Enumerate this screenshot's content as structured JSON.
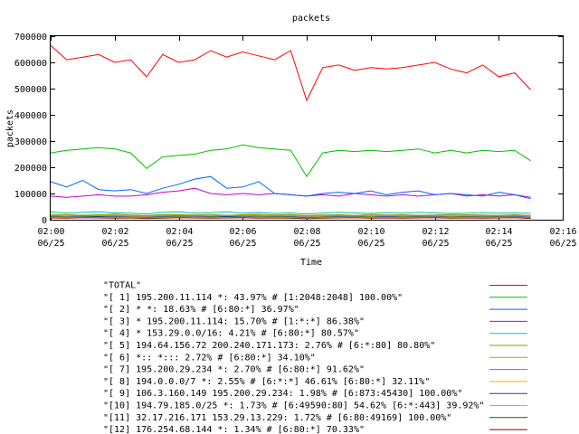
{
  "chart_data": {
    "type": "line",
    "title": "packets",
    "xlabel": "Time",
    "ylabel": "packets",
    "ylim": [
      0,
      700000
    ],
    "yticks": [
      0,
      100000,
      200000,
      300000,
      400000,
      500000,
      600000,
      700000
    ],
    "yticklabels": [
      "0",
      "100000",
      "200000",
      "300000",
      "400000",
      "500000",
      "600000",
      "700000"
    ],
    "xlim": [
      "02:00",
      "02:16"
    ],
    "xticks": [
      {
        "time": "02:00",
        "date": "06/25"
      },
      {
        "time": "02:02",
        "date": "06/25"
      },
      {
        "time": "02:04",
        "date": "06/25"
      },
      {
        "time": "02:06",
        "date": "06/25"
      },
      {
        "time": "02:08",
        "date": "06/25"
      },
      {
        "time": "02:10",
        "date": "06/25"
      },
      {
        "time": "02:12",
        "date": "06/25"
      },
      {
        "time": "02:14",
        "date": "06/25"
      },
      {
        "time": "02:16",
        "date": "06/25"
      }
    ],
    "grid": false,
    "legend_position": "bottom",
    "x": [
      "02:00",
      "02:00:30",
      "02:01",
      "02:01:30",
      "02:02",
      "02:02:30",
      "02:03",
      "02:03:30",
      "02:04",
      "02:04:30",
      "02:05",
      "02:05:30",
      "02:06",
      "02:06:30",
      "02:07",
      "02:07:30",
      "02:08",
      "02:08:30",
      "02:09",
      "02:09:30",
      "02:10",
      "02:10:30",
      "02:11",
      "02:11:30",
      "02:12",
      "02:12:30",
      "02:13",
      "02:13:30",
      "02:14",
      "02:14:30",
      "02:15"
    ],
    "series": [
      {
        "name": "\"TOTAL\"",
        "color": "#ff0000",
        "values": [
          665000,
          610000,
          620000,
          630000,
          600000,
          610000,
          545000,
          630000,
          600000,
          610000,
          645000,
          620000,
          640000,
          625000,
          610000,
          645000,
          455000,
          580000,
          590000,
          570000,
          580000,
          575000,
          580000,
          590000,
          600000,
          575000,
          560000,
          590000,
          545000,
          560000,
          495000
        ]
      },
      {
        "name": "\"[ 1] 195.200.11.114 *: 43.97% # [1:2048:2048] 100.00%\"",
        "color": "#00c000",
        "values": [
          255000,
          265000,
          270000,
          275000,
          270000,
          255000,
          195000,
          240000,
          245000,
          250000,
          265000,
          270000,
          285000,
          275000,
          270000,
          265000,
          165000,
          255000,
          265000,
          260000,
          265000,
          260000,
          265000,
          270000,
          255000,
          265000,
          255000,
          265000,
          260000,
          265000,
          225000
        ]
      },
      {
        "name": "\"[ 2] * *: 18.63% # [6:80:*] 36.97%\"",
        "color": "#0066ff",
        "values": [
          145000,
          125000,
          150000,
          115000,
          110000,
          115000,
          100000,
          120000,
          135000,
          155000,
          165000,
          120000,
          125000,
          145000,
          100000,
          95000,
          90000,
          100000,
          105000,
          100000,
          110000,
          95000,
          105000,
          110000,
          95000,
          100000,
          95000,
          90000,
          105000,
          95000,
          80000
        ]
      },
      {
        "name": "\"[ 3] * 195.200.11.114: 15.70% # [1:*:*] 86.38%\"",
        "color": "#cc00cc",
        "values": [
          90000,
          85000,
          90000,
          95000,
          90000,
          90000,
          95000,
          105000,
          110000,
          120000,
          100000,
          95000,
          100000,
          95000,
          100000,
          95000,
          90000,
          95000,
          90000,
          100000,
          95000,
          90000,
          95000,
          90000,
          95000,
          100000,
          90000,
          95000,
          90000,
          95000,
          85000
        ]
      },
      {
        "name": "\"[ 4] * 153.29.0.0/16: 4.21% # [6:80:*] 80.57%\"",
        "color": "#00c0c0",
        "values": [
          30000,
          25000,
          28000,
          30000,
          26000,
          25000,
          22000,
          28000,
          30000,
          25000,
          27000,
          30000,
          25000,
          28000,
          24000,
          26000,
          22000,
          25000,
          28000,
          26000,
          24000,
          27000,
          25000,
          28000,
          26000,
          24000,
          25000,
          27000,
          25000,
          26000,
          24000
        ]
      },
      {
        "name": "\"[ 5] 194.64.156.72 200.240.171.173: 2.76% # [6:*:80] 80.80%\"",
        "color": "#999900",
        "values": [
          18000,
          20000,
          17000,
          19000,
          21000,
          18000,
          16000,
          20000,
          19000,
          18000,
          20000,
          17000,
          19000,
          21000,
          18000,
          20000,
          16000,
          18000,
          19000,
          17000,
          20000,
          18000,
          19000,
          17000,
          18000,
          20000,
          19000,
          18000,
          17000,
          19000,
          16000
        ]
      },
      {
        "name": "\"[ 6] *:: *::: 2.72% # [6:80:*] 34.10%\"",
        "color": "#c0a000",
        "values": [
          17000,
          15000,
          18000,
          16000,
          17000,
          15000,
          14000,
          16000,
          18000,
          17000,
          15000,
          16000,
          18000,
          17000,
          15000,
          16000,
          13000,
          15000,
          17000,
          16000,
          14000,
          16000,
          15000,
          17000,
          16000,
          15000,
          14000,
          16000,
          15000,
          17000,
          14000
        ]
      },
      {
        "name": "\"[ 7] 195.200.29.234 *: 2.70% # [6:80:*] 91.62%\"",
        "color": "#6666ff",
        "values": [
          16000,
          14000,
          15000,
          17000,
          15000,
          14000,
          13000,
          15000,
          16000,
          14000,
          15000,
          17000,
          15000,
          14000,
          16000,
          15000,
          12000,
          14000,
          15000,
          16000,
          14000,
          15000,
          14000,
          16000,
          15000,
          14000,
          15000,
          14000,
          16000,
          15000,
          13000
        ]
      },
      {
        "name": "\"[ 8] 194.0.0.0/7 *: 2.55% # [6:*:*] 46.61% [6:80:*] 32.11%\"",
        "color": "#ffaa00",
        "values": [
          15000,
          13000,
          14000,
          16000,
          14000,
          13000,
          12000,
          14000,
          15000,
          13000,
          14000,
          16000,
          14000,
          13000,
          15000,
          14000,
          11000,
          13000,
          14000,
          15000,
          13000,
          14000,
          13000,
          15000,
          14000,
          13000,
          14000,
          13000,
          15000,
          14000,
          12000
        ]
      },
      {
        "name": "\"[ 9] 106.3.160.149 195.200.29.234: 1.98% # [6:873:45430] 100.00%\"",
        "color": "#005577",
        "values": [
          12000,
          11000,
          13000,
          12000,
          11000,
          12000,
          10000,
          11000,
          13000,
          12000,
          11000,
          12000,
          13000,
          11000,
          12000,
          11000,
          9000,
          11000,
          12000,
          13000,
          11000,
          12000,
          11000,
          12000,
          13000,
          11000,
          12000,
          11000,
          12000,
          13000,
          10000
        ]
      },
      {
        "name": "\"[10] 194.79.185.0/25 *: 1.73% # [6:49590:80] 54.62% [6:*:443] 39.92%\"",
        "color": "#cc88ff",
        "values": [
          10000,
          9000,
          11000,
          10000,
          9000,
          10000,
          8000,
          9000,
          11000,
          10000,
          9000,
          10000,
          11000,
          9000,
          10000,
          9000,
          7000,
          9000,
          10000,
          11000,
          9000,
          10000,
          9000,
          10000,
          11000,
          9000,
          10000,
          9000,
          10000,
          11000,
          8000
        ]
      },
      {
        "name": "\"[11] 32.17.216.171 153.29.13.229: 1.72% # [6:80:49169] 100.00%\"",
        "color": "#006600",
        "values": [
          9000,
          8000,
          10000,
          9000,
          8000,
          9000,
          7000,
          8000,
          10000,
          9000,
          8000,
          9000,
          10000,
          8000,
          9000,
          8000,
          6000,
          8000,
          9000,
          10000,
          8000,
          9000,
          8000,
          9000,
          10000,
          8000,
          9000,
          8000,
          9000,
          10000,
          7000
        ]
      },
      {
        "name": "\"[12] 176.254.68.144 *: 1.34% # [6:80:*] 70.33%\"",
        "color": "#880000",
        "values": [
          7000,
          6000,
          8000,
          7000,
          6000,
          7000,
          5000,
          6000,
          8000,
          7000,
          6000,
          7000,
          8000,
          6000,
          7000,
          6000,
          4000,
          6000,
          7000,
          8000,
          6000,
          7000,
          6000,
          7000,
          8000,
          6000,
          7000,
          6000,
          7000,
          8000,
          5000
        ]
      }
    ]
  }
}
